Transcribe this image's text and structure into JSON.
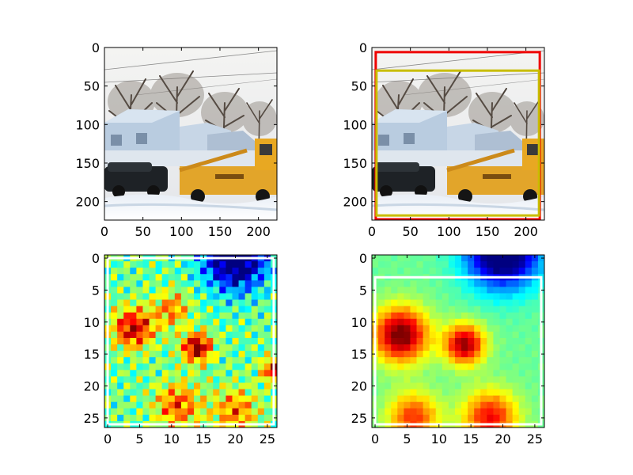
{
  "figure": {
    "background": "#ffffff"
  },
  "chart_data": [
    {
      "type": "heatmap",
      "content": "photo",
      "image_description": "snowy street scene with bare trees, houses, a dark car and a yellow tow truck",
      "xlim": [
        0,
        224
      ],
      "ylim": [
        224,
        0
      ],
      "xticks": [
        0,
        50,
        100,
        150,
        200
      ],
      "yticks": [
        0,
        50,
        100,
        150,
        200
      ],
      "xtick_labels": [
        "0",
        "50",
        "100",
        "150",
        "200"
      ],
      "ytick_labels": [
        "0",
        "50",
        "100",
        "150",
        "200"
      ],
      "boxes": []
    },
    {
      "type": "heatmap",
      "content": "photo",
      "image_description": "same snowy street scene with two bounding boxes overlaid",
      "xlim": [
        0,
        224
      ],
      "ylim": [
        224,
        0
      ],
      "xticks": [
        0,
        50,
        100,
        150,
        200
      ],
      "yticks": [
        0,
        50,
        100,
        150,
        200
      ],
      "xtick_labels": [
        "0",
        "50",
        "100",
        "150",
        "200"
      ],
      "ytick_labels": [
        "0",
        "50",
        "100",
        "150",
        "200"
      ],
      "boxes": [
        {
          "color": "#ee0000",
          "x0": 5,
          "y0": 6,
          "x1": 218,
          "y1": 223
        },
        {
          "color": "#c8bd00",
          "x0": 6,
          "y0": 30,
          "x1": 217,
          "y1": 218
        }
      ]
    },
    {
      "type": "heatmap",
      "content": "heatmap",
      "colormap": "jet",
      "grid_size": 27,
      "xlim": [
        -0.5,
        26.5
      ],
      "ylim": [
        26.5,
        -0.5
      ],
      "xticks": [
        0,
        5,
        10,
        15,
        20,
        25
      ],
      "yticks": [
        0,
        5,
        10,
        15,
        20,
        25
      ],
      "xtick_labels": [
        "0",
        "5",
        "10",
        "15",
        "20",
        "25"
      ],
      "ytick_labels": [
        "0",
        "5",
        "10",
        "15",
        "20",
        "25"
      ],
      "hotspots": [
        {
          "x": 4,
          "y": 11,
          "value": 0.92,
          "sigma": 2.2
        },
        {
          "x": 14,
          "y": 14,
          "value": 1.0,
          "sigma": 1.6
        },
        {
          "x": 26,
          "y": 17.5,
          "value": 0.9,
          "sigma": 1.3
        },
        {
          "x": 11,
          "y": 23,
          "value": 0.78,
          "sigma": 2.5
        },
        {
          "x": 20,
          "y": 24,
          "value": 0.74,
          "sigma": 2.5
        },
        {
          "x": 10,
          "y": 8,
          "value": 0.72,
          "sigma": 2.0
        }
      ],
      "low_regions": [
        {
          "x": 20,
          "y": 0,
          "value": 0.05,
          "sigma": 3.5
        }
      ],
      "boxes": [
        {
          "color": "#ffffff",
          "x0": 0,
          "y0": 0,
          "x1": 26,
          "y1": 26
        }
      ]
    },
    {
      "type": "heatmap",
      "content": "heatmap",
      "colormap": "jet",
      "grid_size": 27,
      "xlim": [
        -0.5,
        26.5
      ],
      "ylim": [
        26.5,
        -0.5
      ],
      "xticks": [
        0,
        5,
        10,
        15,
        20,
        25
      ],
      "yticks": [
        0,
        5,
        10,
        15,
        20,
        25
      ],
      "xtick_labels": [
        "0",
        "5",
        "10",
        "15",
        "20",
        "25"
      ],
      "ytick_labels": [
        "0",
        "5",
        "10",
        "15",
        "20",
        "25"
      ],
      "hotspots": [
        {
          "x": 4,
          "y": 12,
          "value": 1.0,
          "sigma": 3.0
        },
        {
          "x": 14,
          "y": 13.5,
          "value": 0.95,
          "sigma": 2.2
        },
        {
          "x": 18,
          "y": 25,
          "value": 0.85,
          "sigma": 3.0
        },
        {
          "x": 6,
          "y": 25,
          "value": 0.8,
          "sigma": 2.8
        }
      ],
      "low_regions": [
        {
          "x": 20,
          "y": -1,
          "value": 0.05,
          "sigma": 4.0
        }
      ],
      "boxes": [
        {
          "color": "#ffffff",
          "x0": 0,
          "y0": 3,
          "x1": 26,
          "y1": 26
        }
      ]
    }
  ]
}
